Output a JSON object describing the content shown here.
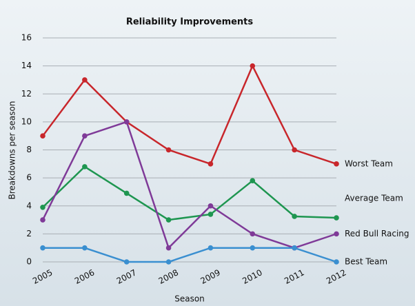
{
  "chart_data": {
    "type": "line",
    "title": "Reliability Improvements",
    "x_label": "Season",
    "y_label": "Breakdowns per season",
    "categories": [
      "2005",
      "2006",
      "2007",
      "2008",
      "2009",
      "2010",
      "2011",
      "2012"
    ],
    "series": [
      {
        "name": "Worst Team",
        "color": "#c8262b",
        "values": [
          9,
          13,
          10,
          8,
          7,
          14,
          8,
          7
        ]
      },
      {
        "name": "Average Team",
        "color": "#1e9650",
        "values": [
          3.9,
          6.8,
          4.9,
          3,
          3.4,
          5.8,
          3.25,
          3.15
        ]
      },
      {
        "name": "Red Bull Racing",
        "color": "#7f3a98",
        "values": [
          3,
          9,
          10,
          1,
          4,
          2,
          1,
          2
        ]
      },
      {
        "name": "Best Team",
        "color": "#3a8fd0",
        "values": [
          1,
          1,
          0,
          0,
          1,
          1,
          1,
          0
        ]
      }
    ],
    "ylim": [
      0,
      16
    ],
    "yticks": [
      0,
      2,
      4,
      6,
      8,
      10,
      12,
      14,
      16
    ],
    "grid": true
  }
}
